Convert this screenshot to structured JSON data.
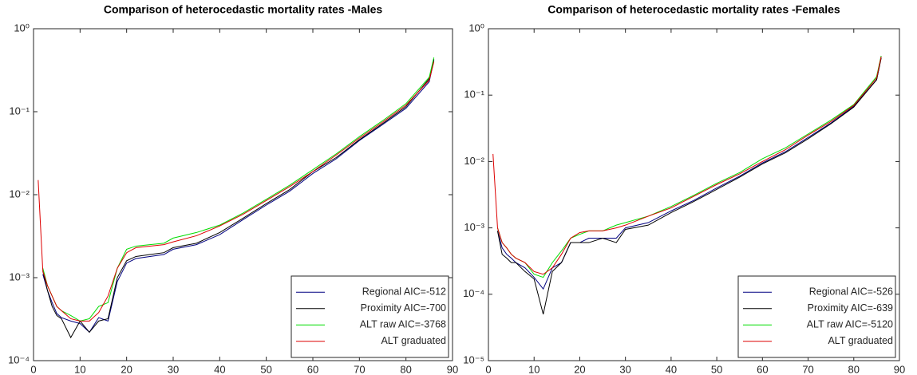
{
  "chart_data": [
    {
      "type": "line",
      "title": "Comparison of heterocedastic mortality rates -Males",
      "x": [
        1,
        2,
        3,
        4,
        5,
        6,
        8,
        10,
        12,
        14,
        16,
        18,
        20,
        22,
        25,
        28,
        30,
        35,
        40,
        45,
        50,
        55,
        60,
        65,
        70,
        75,
        80,
        85,
        86
      ],
      "xlim": [
        0,
        90
      ],
      "xticks": [
        0,
        10,
        20,
        30,
        40,
        50,
        60,
        70,
        80,
        90
      ],
      "ylim": [
        0.0001,
        1
      ],
      "log_y": true,
      "yticks": [
        {
          "value": 0.0001,
          "label": "10⁻⁴"
        },
        {
          "value": 0.001,
          "label": "10⁻³"
        },
        {
          "value": 0.01,
          "label": "10⁻²"
        },
        {
          "value": 0.1,
          "label": "10⁻¹"
        },
        {
          "value": 1,
          "label": "10⁰"
        }
      ],
      "legend": "lower right",
      "series": [
        {
          "name": "Regional AIC=-512",
          "color": "#000080",
          "values": [
            null,
            0.0011,
            0.0007,
            0.0005,
            0.00037,
            0.00033,
            0.0003,
            0.00028,
            0.00022,
            0.00033,
            0.0003,
            0.0009,
            0.0015,
            0.0017,
            0.0018,
            0.0019,
            0.0022,
            0.0025,
            0.0033,
            0.005,
            0.0075,
            0.011,
            0.018,
            0.027,
            0.045,
            0.07,
            0.11,
            0.23,
            0.42
          ]
        },
        {
          "name": "Proximity AIC=-700",
          "color": "#000000",
          "values": [
            null,
            0.0012,
            0.0007,
            0.00045,
            0.00035,
            0.00032,
            0.00019,
            0.0003,
            0.00022,
            0.0003,
            0.00032,
            0.001,
            0.0016,
            0.0018,
            0.0019,
            0.002,
            0.0023,
            0.0026,
            0.0035,
            0.0052,
            0.0078,
            0.0115,
            0.019,
            0.028,
            0.046,
            0.072,
            0.115,
            0.25,
            0.43
          ]
        },
        {
          "name": "ALT raw AIC=-3768",
          "color": "#00dd00",
          "values": [
            null,
            0.0013,
            0.0008,
            0.0006,
            0.00045,
            0.0004,
            0.00035,
            0.0003,
            0.00032,
            0.00045,
            0.0005,
            0.0013,
            0.0022,
            0.0024,
            0.0025,
            0.0026,
            0.003,
            0.0035,
            0.0043,
            0.006,
            0.0088,
            0.013,
            0.02,
            0.031,
            0.05,
            0.078,
            0.125,
            0.26,
            0.45
          ]
        },
        {
          "name": "ALT graduated",
          "color": "#dd0000",
          "values": [
            0.015,
            0.0012,
            0.0008,
            0.0006,
            0.00045,
            0.0004,
            0.00032,
            0.0003,
            0.0003,
            0.00038,
            0.0006,
            0.0013,
            0.002,
            0.0023,
            0.0024,
            0.0025,
            0.0027,
            0.0032,
            0.0042,
            0.0058,
            0.0085,
            0.0125,
            0.019,
            0.03,
            0.048,
            0.075,
            0.12,
            0.24,
            0.4
          ]
        }
      ]
    },
    {
      "type": "line",
      "title": "Comparison of heterocedastic mortality rates -Females",
      "x": [
        1,
        2,
        3,
        4,
        5,
        6,
        8,
        10,
        12,
        14,
        16,
        18,
        20,
        22,
        25,
        28,
        30,
        35,
        40,
        45,
        50,
        55,
        60,
        65,
        70,
        75,
        80,
        85,
        86
      ],
      "xlim": [
        0,
        90
      ],
      "xticks": [
        0,
        10,
        20,
        30,
        40,
        50,
        60,
        70,
        80,
        90
      ],
      "ylim": [
        1e-05,
        1
      ],
      "log_y": true,
      "yticks": [
        {
          "value": 1e-05,
          "label": "10⁻⁵"
        },
        {
          "value": 0.0001,
          "label": "10⁻⁴"
        },
        {
          "value": 0.001,
          "label": "10⁻³"
        },
        {
          "value": 0.01,
          "label": "10⁻²"
        },
        {
          "value": 0.1,
          "label": "10⁻¹"
        },
        {
          "value": 1,
          "label": "10⁰"
        }
      ],
      "legend": "lower right",
      "series": [
        {
          "name": "Regional AIC=-526",
          "color": "#000080",
          "values": [
            null,
            0.0009,
            0.0005,
            0.0004,
            0.00035,
            0.0003,
            0.00025,
            0.00018,
            0.00012,
            0.00025,
            0.0003,
            0.0006,
            0.0006,
            0.0007,
            0.0007,
            0.0007,
            0.001,
            0.0012,
            0.0018,
            0.0026,
            0.004,
            0.006,
            0.0095,
            0.014,
            0.023,
            0.038,
            0.068,
            0.17,
            0.37
          ]
        },
        {
          "name": "Proximity AIC=-639",
          "color": "#000000",
          "values": [
            null,
            0.0009,
            0.0004,
            0.00035,
            0.0003,
            0.0003,
            0.00022,
            0.00017,
            5e-05,
            0.00022,
            0.0003,
            0.0006,
            0.0006,
            0.0006,
            0.0007,
            0.0006,
            0.00095,
            0.0011,
            0.0017,
            0.0025,
            0.0038,
            0.0058,
            0.0092,
            0.0135,
            0.022,
            0.037,
            0.066,
            0.17,
            0.36
          ]
        },
        {
          "name": "ALT raw AIC=-5120",
          "color": "#00dd00",
          "values": [
            null,
            0.001,
            0.0006,
            0.0005,
            0.0004,
            0.00035,
            0.0003,
            0.0002,
            0.00018,
            0.0003,
            0.00045,
            0.0007,
            0.0008,
            0.0009,
            0.0009,
            0.0011,
            0.0012,
            0.0015,
            0.0021,
            0.0031,
            0.0047,
            0.0068,
            0.011,
            0.016,
            0.026,
            0.042,
            0.072,
            0.19,
            0.39
          ]
        },
        {
          "name": "ALT graduated",
          "color": "#dd0000",
          "values": [
            0.013,
            0.001,
            0.0006,
            0.0005,
            0.0004,
            0.00035,
            0.0003,
            0.00022,
            0.0002,
            0.00025,
            0.0004,
            0.0007,
            0.00085,
            0.0009,
            0.0009,
            0.001,
            0.0011,
            0.0015,
            0.002,
            0.003,
            0.0045,
            0.0065,
            0.01,
            0.015,
            0.025,
            0.04,
            0.07,
            0.18,
            0.38
          ]
        }
      ]
    }
  ]
}
